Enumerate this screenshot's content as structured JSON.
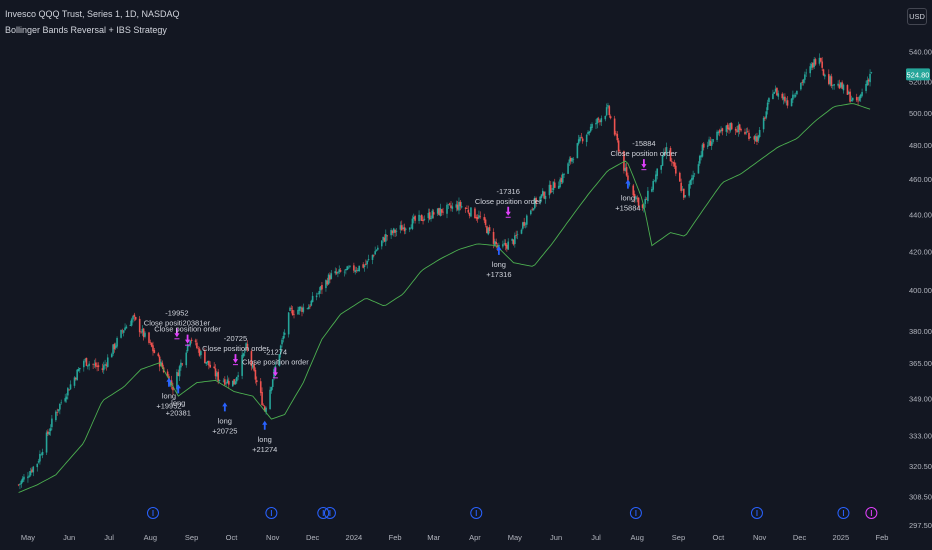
{
  "header": {
    "title": "Invesco QQQ Trust, Series 1, 1D, NASDAQ",
    "indicator": "Bollinger Bands Reversal + IBS Strategy"
  },
  "currency_button": "USD",
  "colors": {
    "background": "#131722",
    "up": "#26a69a",
    "down": "#ef5350",
    "lower_band": "#4caf50",
    "entry": "#2962ff",
    "exit": "#e040fb",
    "text": "#d1d4dc",
    "axis_text": "#b2b5be",
    "price_tag": "#26a69a"
  },
  "last_price": "524.80",
  "chart_data": {
    "type": "candlestick",
    "title": "Invesco QQQ Trust, Series 1, 1D, NASDAQ",
    "x_ticks": [
      "May",
      "Jun",
      "Jul",
      "Aug",
      "Sep",
      "Oct",
      "Nov",
      "Dec",
      "2024",
      "Feb",
      "Mar",
      "Apr",
      "May",
      "Jun",
      "Jul",
      "Aug",
      "Sep",
      "Oct",
      "Nov",
      "Dec",
      "2025",
      "Feb"
    ],
    "y_ticks": [
      297.5,
      308.5,
      320.5,
      333.0,
      349.0,
      365.0,
      380.0,
      400.0,
      420.0,
      440.0,
      460.0,
      480.0,
      500.0,
      520.0,
      540.0
    ],
    "y_range": [
      292,
      548
    ],
    "y_scale": "log",
    "close_path": [
      [
        "2023-04-24",
        313
      ],
      [
        "2023-05-08",
        322
      ],
      [
        "2023-05-22",
        343
      ],
      [
        "2023-06-12",
        366
      ],
      [
        "2023-06-26",
        362
      ],
      [
        "2023-07-12",
        381
      ],
      [
        "2023-07-19",
        386
      ],
      [
        "2023-08-02",
        372
      ],
      [
        "2023-08-18",
        354
      ],
      [
        "2023-08-31",
        377
      ],
      [
        "2023-09-07",
        370
      ],
      [
        "2023-09-21",
        358
      ],
      [
        "2023-10-03",
        356
      ],
      [
        "2023-10-12",
        372
      ],
      [
        "2023-10-26",
        344
      ],
      [
        "2023-11-14",
        389
      ],
      [
        "2023-11-28",
        392
      ],
      [
        "2023-12-14",
        407
      ],
      [
        "2023-12-28",
        410
      ],
      [
        "2024-01-10",
        413
      ],
      [
        "2024-01-25",
        428
      ],
      [
        "2024-02-15",
        436
      ],
      [
        "2024-03-07",
        442
      ],
      [
        "2024-03-21",
        445
      ],
      [
        "2024-04-05",
        438
      ],
      [
        "2024-04-19",
        421
      ],
      [
        "2024-05-01",
        426
      ],
      [
        "2024-05-15",
        446
      ],
      [
        "2024-06-05",
        460
      ],
      [
        "2024-06-20",
        484
      ],
      [
        "2024-07-10",
        502
      ],
      [
        "2024-07-25",
        458
      ],
      [
        "2024-08-05",
        443
      ],
      [
        "2024-08-23",
        477
      ],
      [
        "2024-09-06",
        449
      ],
      [
        "2024-09-19",
        478
      ],
      [
        "2024-10-10",
        492
      ],
      [
        "2024-10-31",
        484
      ],
      [
        "2024-11-11",
        515
      ],
      [
        "2024-11-22",
        507
      ],
      [
        "2024-12-06",
        524
      ],
      [
        "2024-12-16",
        539
      ],
      [
        "2024-12-20",
        523
      ],
      [
        "2025-01-02",
        516
      ],
      [
        "2025-01-13",
        505
      ],
      [
        "2025-01-24",
        527
      ]
    ],
    "lower_band": [
      [
        "2023-04-24",
        310
      ],
      [
        "2023-05-08",
        313
      ],
      [
        "2023-05-22",
        317
      ],
      [
        "2023-06-12",
        330
      ],
      [
        "2023-06-26",
        348
      ],
      [
        "2023-07-12",
        354
      ],
      [
        "2023-07-25",
        362
      ],
      [
        "2023-08-08",
        365
      ],
      [
        "2023-08-22",
        350
      ],
      [
        "2023-09-05",
        356
      ],
      [
        "2023-09-19",
        357
      ],
      [
        "2023-10-03",
        352
      ],
      [
        "2023-10-17",
        350
      ],
      [
        "2023-10-31",
        340
      ],
      [
        "2023-11-10",
        342
      ],
      [
        "2023-11-24",
        356
      ],
      [
        "2023-12-08",
        376
      ],
      [
        "2023-12-22",
        388
      ],
      [
        "2024-01-10",
        396
      ],
      [
        "2024-01-24",
        392
      ],
      [
        "2024-02-07",
        398
      ],
      [
        "2024-02-21",
        410
      ],
      [
        "2024-03-06",
        416
      ],
      [
        "2024-03-20",
        421
      ],
      [
        "2024-04-03",
        424
      ],
      [
        "2024-04-17",
        423
      ],
      [
        "2024-04-30",
        414
      ],
      [
        "2024-05-15",
        412
      ],
      [
        "2024-05-29",
        424
      ],
      [
        "2024-06-12",
        438
      ],
      [
        "2024-06-26",
        452
      ],
      [
        "2024-07-10",
        465
      ],
      [
        "2024-07-24",
        471
      ],
      [
        "2024-08-05",
        448
      ],
      [
        "2024-08-12",
        423
      ],
      [
        "2024-08-26",
        430
      ],
      [
        "2024-09-06",
        428
      ],
      [
        "2024-09-20",
        443
      ],
      [
        "2024-10-04",
        458
      ],
      [
        "2024-10-18",
        463
      ],
      [
        "2024-11-01",
        471
      ],
      [
        "2024-11-15",
        479
      ],
      [
        "2024-11-29",
        484
      ],
      [
        "2024-12-13",
        495
      ],
      [
        "2024-12-27",
        504
      ],
      [
        "2025-01-10",
        506
      ],
      [
        "2025-01-24",
        502
      ]
    ],
    "trades": [
      {
        "entry_date": "2023-08-15",
        "entry_price": 360,
        "entry_label": "long\n+19952",
        "exit_date": "2023-08-21",
        "exit_price": 375,
        "exit_label": "-19952\nClose positi​20381er"
      },
      {
        "entry_date": "2023-08-22",
        "entry_price": 357,
        "entry_label": "long\n+20381",
        "exit_date": "2023-08-29",
        "exit_price": 372,
        "exit_label": "Close position order"
      },
      {
        "entry_date": "2023-09-26",
        "entry_price": 349,
        "entry_label": "long\n+20725",
        "exit_date": "2023-10-04",
        "exit_price": 363,
        "exit_label": "-20725\nClose position order"
      },
      {
        "entry_date": "2023-10-26",
        "entry_price": 341,
        "entry_label": "long\n+21274",
        "exit_date": "2023-11-03",
        "exit_price": 357,
        "exit_label": "-21274\nClose position order"
      },
      {
        "entry_date": "2024-04-19",
        "entry_price": 425,
        "entry_label": "long\n+17316",
        "exit_date": "2024-04-26",
        "exit_price": 437,
        "exit_label": "-17316\nClose position order"
      },
      {
        "entry_date": "2024-07-25",
        "entry_price": 462,
        "entry_label": "long\n+15884",
        "exit_date": "2024-08-06",
        "exit_price": 464,
        "exit_label": "-15884\nClose position order"
      }
    ],
    "event_markers": [
      "2023-08-03",
      "2023-10-31",
      "2023-12-09",
      "2023-12-14",
      "2024-04-02",
      "2024-07-31",
      "2024-10-30",
      "2025-01-03",
      "2025-01-24"
    ]
  }
}
